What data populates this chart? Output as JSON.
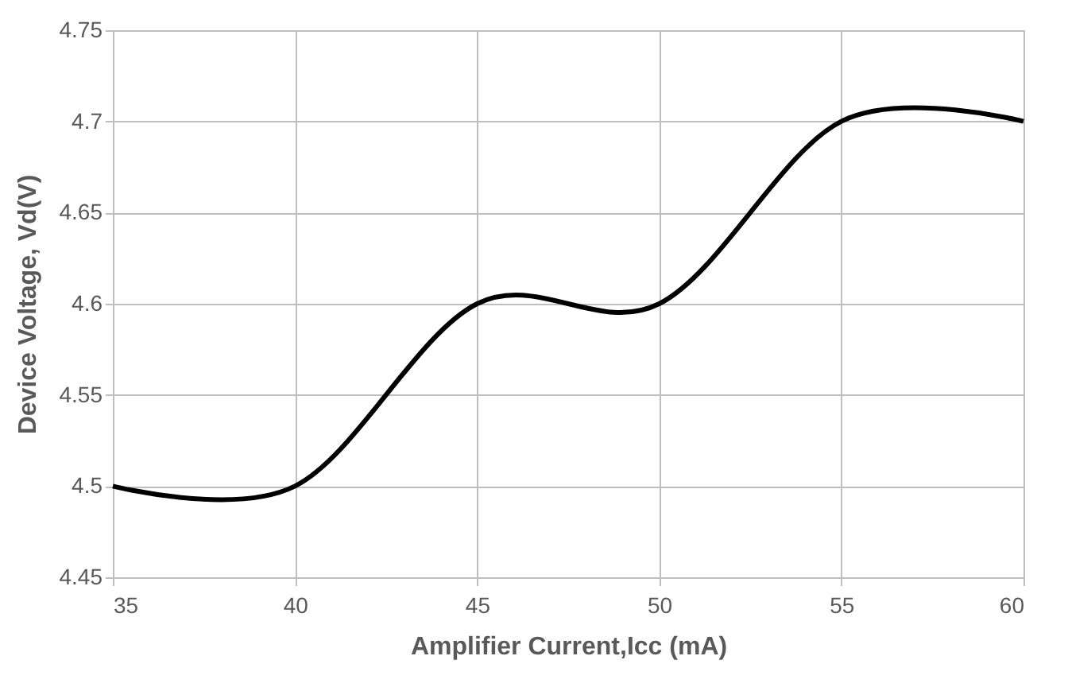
{
  "chart_data": {
    "type": "line",
    "xlabel": "Amplifier Current,Icc (mA)",
    "ylabel": "Device Voltage, Vd(V)",
    "x": [
      35,
      40,
      45,
      50,
      55,
      60
    ],
    "series": [
      {
        "color": "#000000",
        "values": [
          4.5,
          4.5,
          4.6,
          4.6,
          4.7,
          4.7
        ]
      }
    ],
    "xlim": [
      35,
      60
    ],
    "xticks": [
      35,
      40,
      45,
      50,
      55,
      60
    ],
    "ylim": [
      4.45,
      4.75
    ],
    "yticks": [
      4.45,
      4.5,
      4.55,
      4.6,
      4.65,
      4.7,
      4.75
    ],
    "grid": true,
    "legend": false,
    "marker": "none",
    "line_style": "solid"
  }
}
